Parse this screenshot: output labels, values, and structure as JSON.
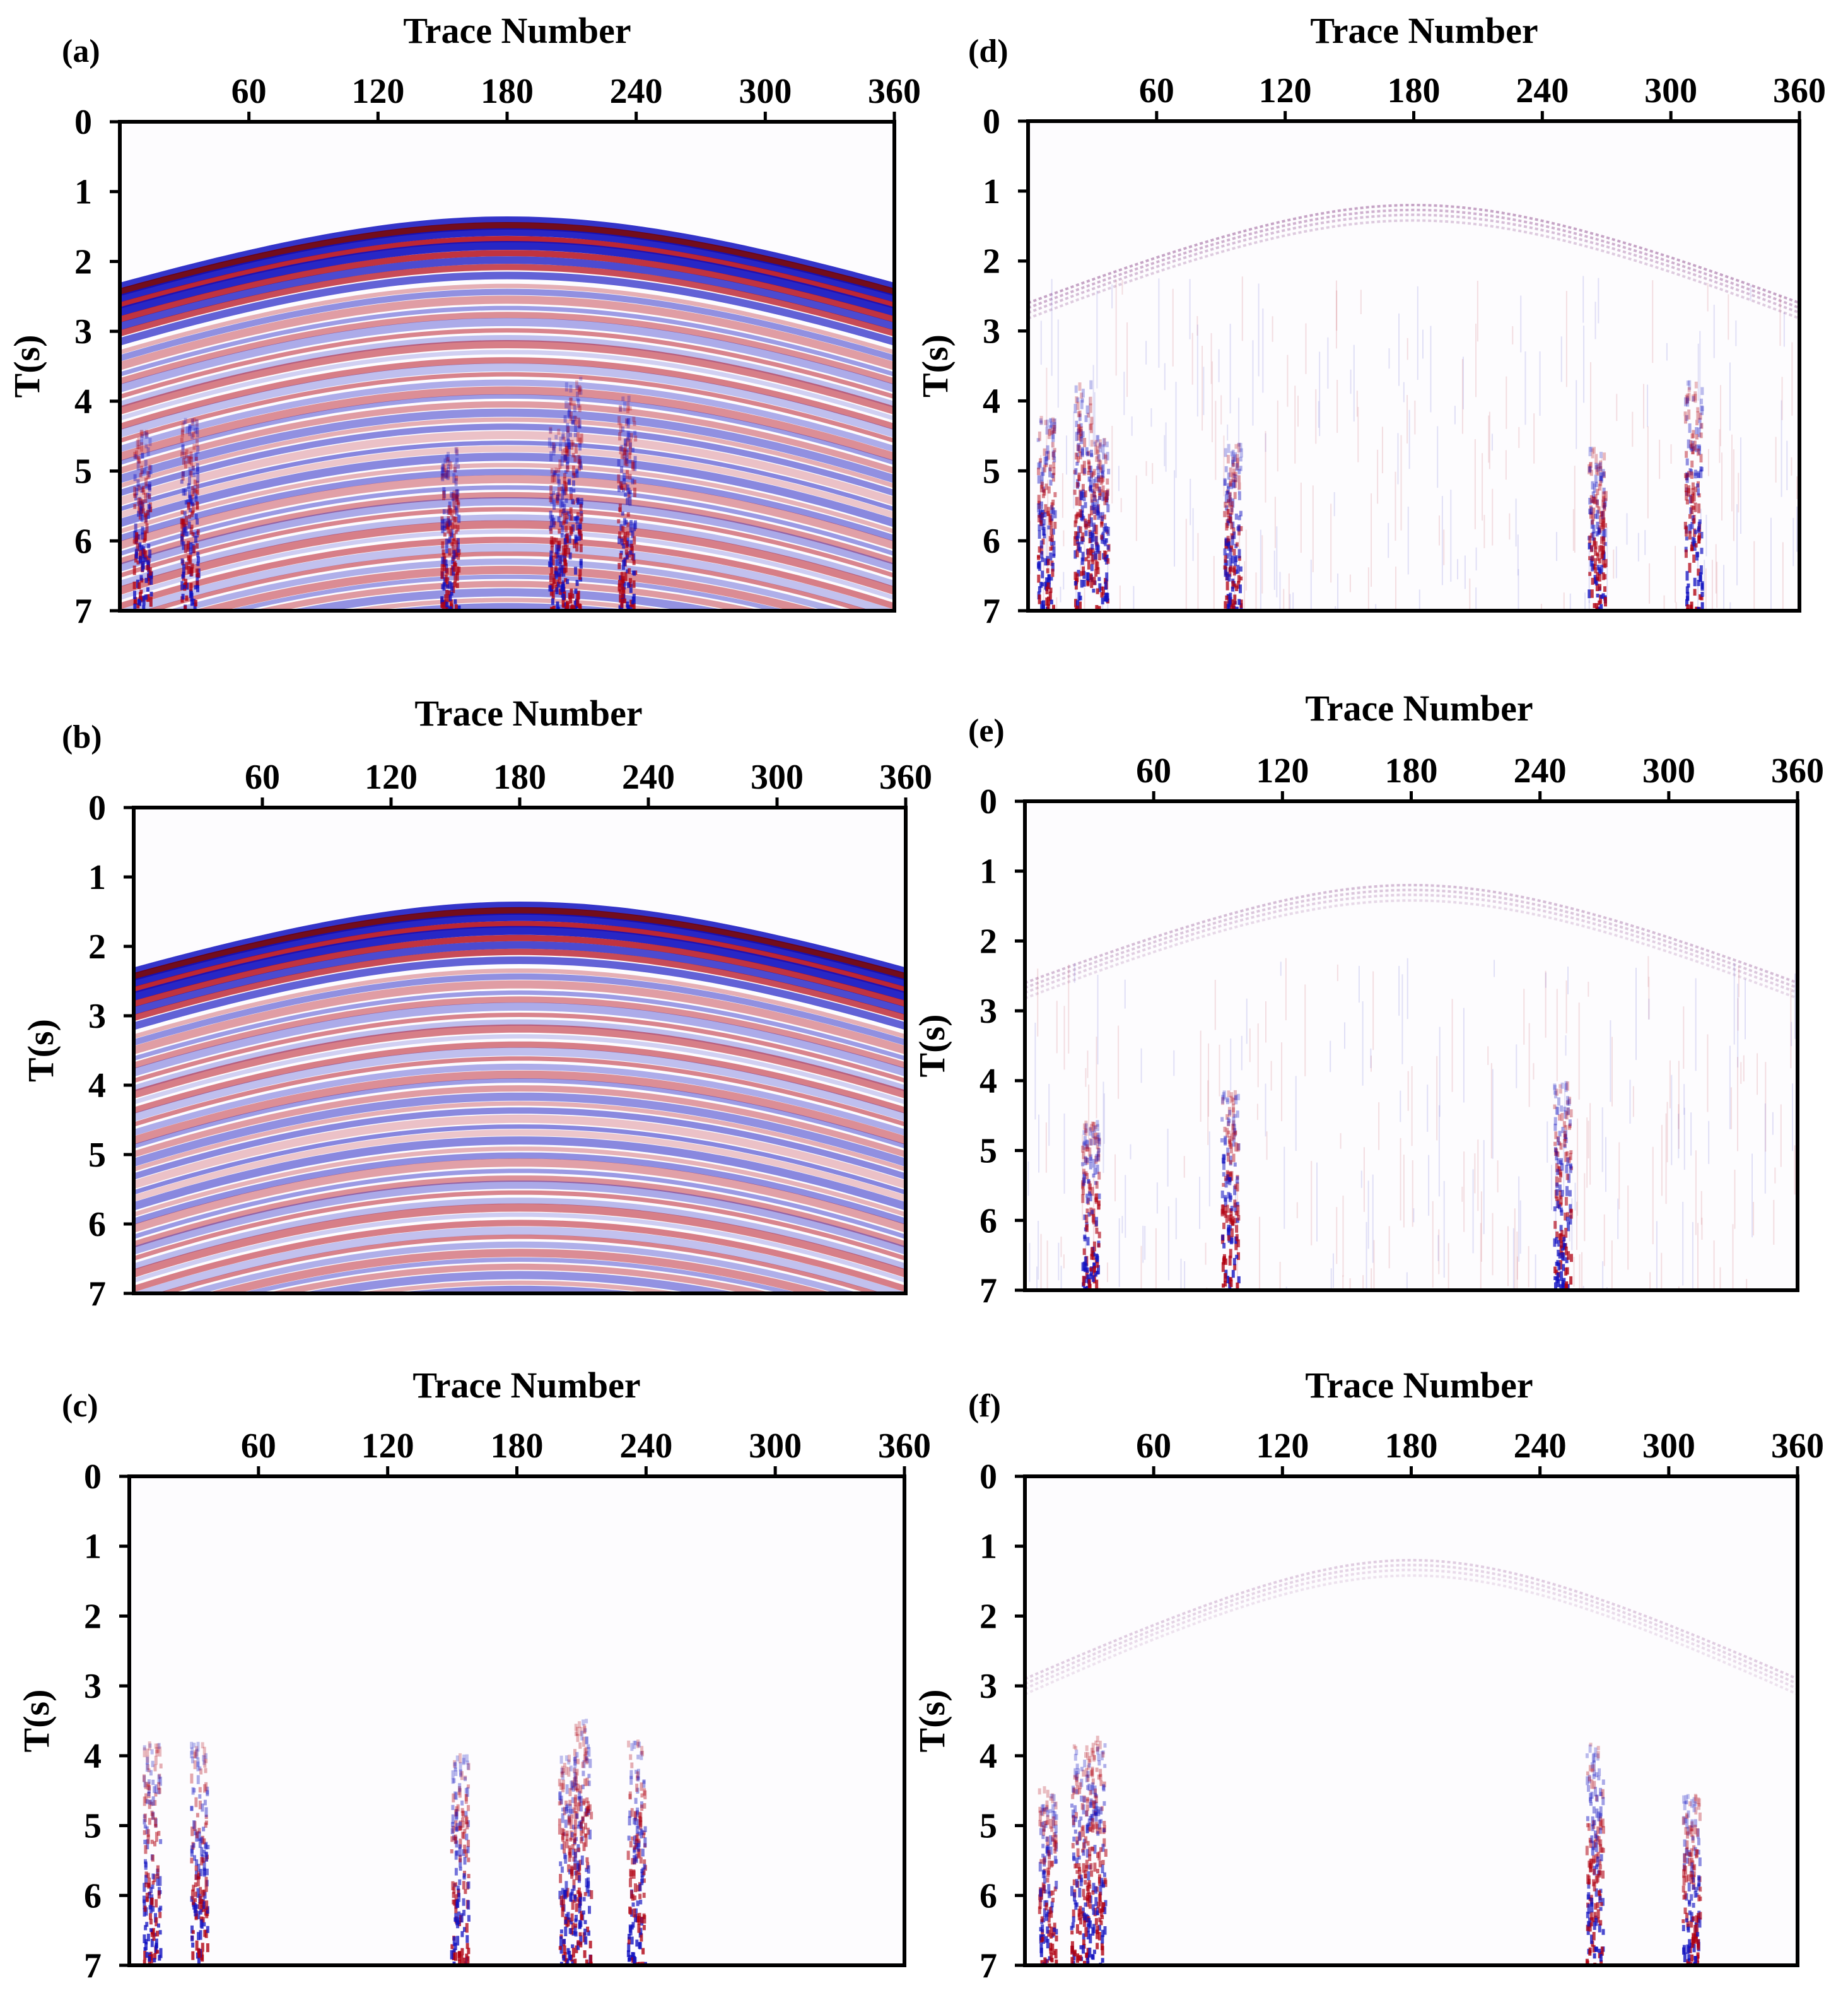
{
  "chart_data": [
    {
      "type": "heatmap",
      "panel": "(a)",
      "title": "",
      "xlabel": "Trace Number",
      "ylabel": "T(s)",
      "x_ticks": [
        "60",
        "120",
        "180",
        "240",
        "300",
        "360"
      ],
      "y_ticks": [
        "0",
        "1",
        "2",
        "3",
        "4",
        "5",
        "6",
        "7"
      ],
      "xlim": [
        0,
        360
      ],
      "ylim": [
        0,
        7
      ],
      "grid": false,
      "colormap": [
        "#1010c0",
        "#ffffff",
        "#b00010"
      ],
      "content": "noisy",
      "events": {
        "apex_trace": 180,
        "apex_time": 1.4,
        "edge_time": 2.35
      },
      "noise_traces": [
        10,
        32,
        153,
        203,
        210,
        235
      ]
    },
    {
      "type": "heatmap",
      "panel": "(b)",
      "title": "",
      "xlabel": "Trace Number",
      "ylabel": "T(s)",
      "x_ticks": [
        "60",
        "120",
        "180",
        "240",
        "300",
        "360"
      ],
      "y_ticks": [
        "0",
        "1",
        "2",
        "3",
        "4",
        "5",
        "6",
        "7"
      ],
      "xlim": [
        0,
        360
      ],
      "ylim": [
        0,
        7
      ],
      "grid": false,
      "colormap": [
        "#1010c0",
        "#ffffff",
        "#b00010"
      ],
      "content": "clean",
      "events": {
        "apex_trace": 180,
        "apex_time": 1.4,
        "edge_time": 2.35
      },
      "noise_traces": []
    },
    {
      "type": "heatmap",
      "panel": "(c)",
      "title": "",
      "xlabel": "Trace Number",
      "ylabel": "T(s)",
      "x_ticks": [
        "60",
        "120",
        "180",
        "240",
        "300",
        "360"
      ],
      "y_ticks": [
        "0",
        "1",
        "2",
        "3",
        "4",
        "5",
        "6",
        "7"
      ],
      "xlim": [
        0,
        360
      ],
      "ylim": [
        0,
        7
      ],
      "grid": false,
      "colormap": [
        "#1010c0",
        "#ffffff",
        "#b00010"
      ],
      "content": "noise-section",
      "noise_traces": [
        10,
        32,
        153,
        203,
        210,
        235
      ]
    },
    {
      "type": "heatmap",
      "panel": "(d)",
      "title": "",
      "xlabel": "Trace Number",
      "ylabel": "T(s)",
      "x_ticks": [
        "60",
        "120",
        "180",
        "240",
        "300",
        "360"
      ],
      "y_ticks": [
        "0",
        "1",
        "2",
        "3",
        "4",
        "5",
        "6",
        "7"
      ],
      "xlim": [
        0,
        360
      ],
      "ylim": [
        0,
        7
      ],
      "grid": false,
      "colormap": [
        "#1010c0",
        "#ffffff",
        "#b00010"
      ],
      "content": "residual-strong",
      "events": {
        "apex_trace": 180,
        "apex_time": 1.2,
        "edge_time": 2.6
      },
      "noise_traces": [
        8,
        25,
        33,
        95,
        265,
        310
      ]
    },
    {
      "type": "heatmap",
      "panel": "(e)",
      "title": "",
      "xlabel": "Trace Number",
      "ylabel": "T(s)",
      "x_ticks": [
        "60",
        "120",
        "180",
        "240",
        "300",
        "360"
      ],
      "y_ticks": [
        "0",
        "1",
        "2",
        "3",
        "4",
        "5",
        "6",
        "7"
      ],
      "xlim": [
        0,
        360
      ],
      "ylim": [
        0,
        7
      ],
      "grid": false,
      "colormap": [
        "#1010c0",
        "#ffffff",
        "#b00010"
      ],
      "content": "residual-weak",
      "events": {
        "apex_trace": 180,
        "apex_time": 1.2,
        "edge_time": 2.6
      },
      "noise_traces": [
        30,
        95,
        250
      ]
    },
    {
      "type": "heatmap",
      "panel": "(f)",
      "title": "",
      "xlabel": "Trace Number",
      "ylabel": "T(s)",
      "x_ticks": [
        "60",
        "120",
        "180",
        "240",
        "300",
        "360"
      ],
      "y_ticks": [
        "0",
        "1",
        "2",
        "3",
        "4",
        "5",
        "6",
        "7"
      ],
      "xlim": [
        0,
        360
      ],
      "ylim": [
        0,
        7
      ],
      "grid": false,
      "colormap": [
        "#1010c0",
        "#ffffff",
        "#b00010"
      ],
      "content": "residual-noise",
      "events": {
        "apex_trace": 180,
        "apex_time": 1.2,
        "edge_time": 2.9
      },
      "noise_traces": [
        10,
        25,
        33,
        265,
        310
      ]
    }
  ]
}
